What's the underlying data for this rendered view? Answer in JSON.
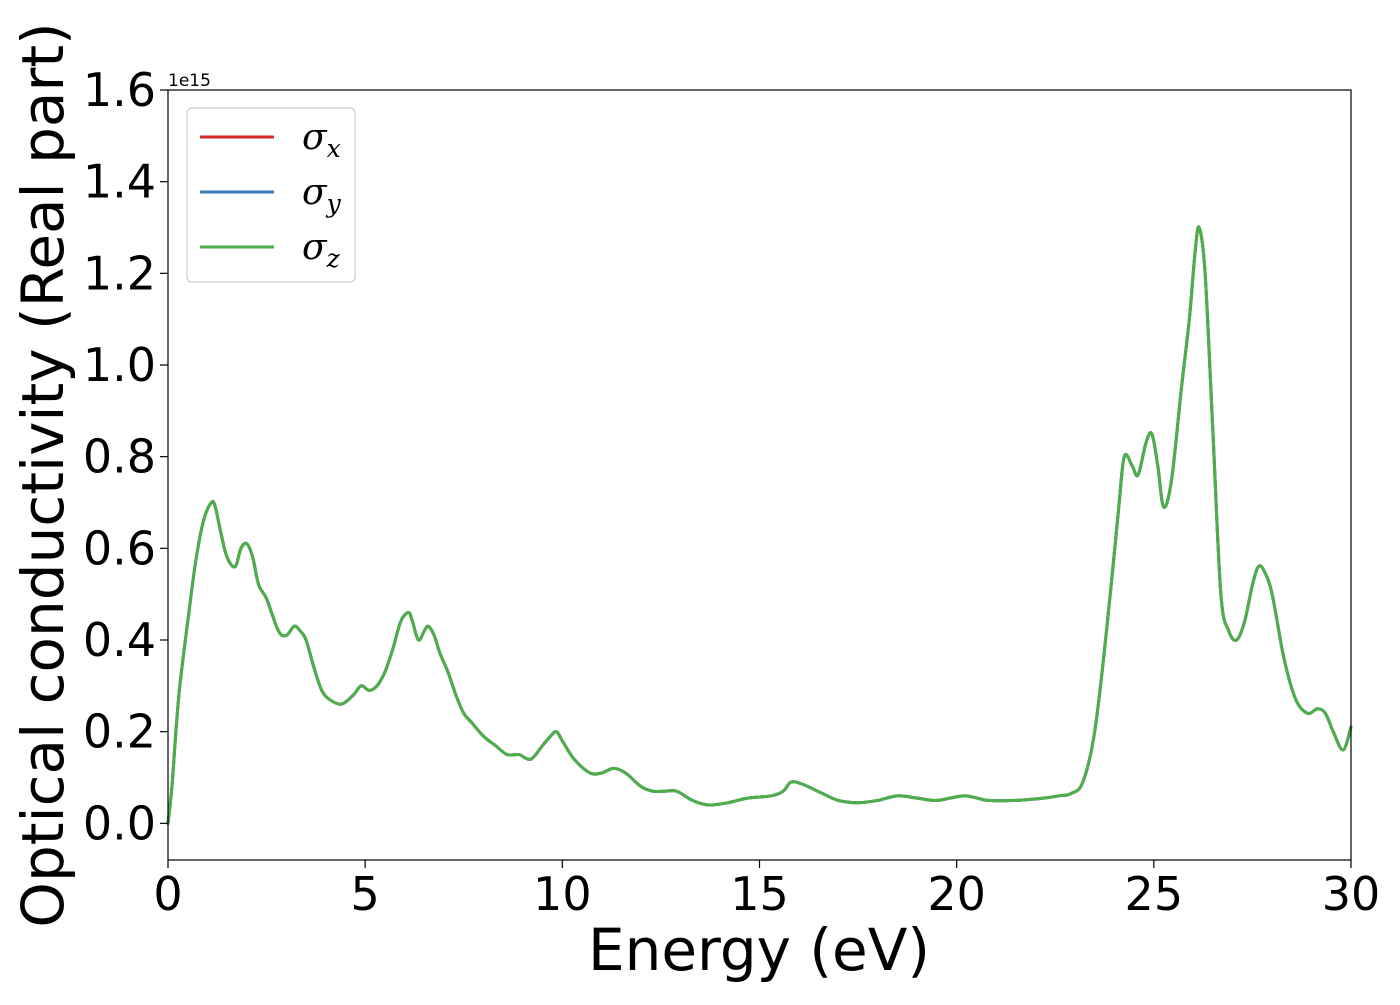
{
  "chart_data": {
    "type": "line",
    "title": "",
    "xlabel": "Energy (eV)",
    "ylabel": "Optical conductivity (Real part)",
    "y_offset_text": "1e15",
    "xlim": [
      0,
      30
    ],
    "ylim": [
      -0.08,
      1.6
    ],
    "x_ticks": [
      0,
      5,
      10,
      15,
      20,
      25,
      30
    ],
    "x_tick_labels": [
      "0",
      "5",
      "10",
      "15",
      "20",
      "25",
      "30"
    ],
    "y_ticks": [
      0.0,
      0.2,
      0.4,
      0.6,
      0.8,
      1.0,
      1.2,
      1.4,
      1.6
    ],
    "y_tick_labels": [
      "0.0",
      "0.2",
      "0.4",
      "0.6",
      "0.8",
      "1.0",
      "1.2",
      "1.4",
      "1.6"
    ],
    "grid": false,
    "legend_position": "top-left",
    "x": [
      0,
      0.1,
      0.2,
      0.3,
      0.5,
      0.7,
      0.9,
      1.1,
      1.2,
      1.35,
      1.5,
      1.7,
      1.85,
      2.0,
      2.15,
      2.3,
      2.5,
      2.8,
      3.0,
      3.2,
      3.35,
      3.5,
      3.7,
      3.9,
      4.1,
      4.4,
      4.7,
      4.9,
      5.1,
      5.3,
      5.5,
      5.7,
      5.9,
      6.1,
      6.2,
      6.35,
      6.5,
      6.6,
      6.75,
      6.9,
      7.1,
      7.3,
      7.5,
      7.7,
      8.0,
      8.3,
      8.6,
      8.9,
      9.2,
      9.5,
      9.7,
      9.85,
      10.0,
      10.3,
      10.7,
      11.0,
      11.3,
      11.6,
      12.0,
      12.3,
      12.6,
      12.9,
      13.3,
      13.7,
      14.2,
      14.7,
      15.3,
      15.6,
      15.8,
      16.1,
      16.6,
      17.0,
      17.5,
      18.0,
      18.5,
      19.0,
      19.5,
      20.2,
      20.8,
      21.5,
      22.2,
      22.6,
      22.9,
      23.2,
      23.5,
      23.8,
      24.1,
      24.25,
      24.45,
      24.6,
      24.8,
      24.95,
      25.1,
      25.25,
      25.45,
      25.7,
      25.9,
      26.05,
      26.15,
      26.3,
      26.5,
      26.7,
      26.9,
      27.1,
      27.3,
      27.5,
      27.65,
      27.8,
      28.0,
      28.3,
      28.6,
      28.9,
      29.15,
      29.35,
      29.55,
      29.8,
      30.0
    ],
    "series": [
      {
        "name": "σx",
        "color": "#d62728",
        "values": [
          0.0,
          0.08,
          0.2,
          0.3,
          0.44,
          0.57,
          0.66,
          0.7,
          0.69,
          0.63,
          0.58,
          0.56,
          0.6,
          0.61,
          0.58,
          0.52,
          0.49,
          0.42,
          0.41,
          0.43,
          0.42,
          0.4,
          0.34,
          0.29,
          0.27,
          0.26,
          0.28,
          0.3,
          0.29,
          0.3,
          0.33,
          0.38,
          0.44,
          0.46,
          0.44,
          0.4,
          0.42,
          0.43,
          0.41,
          0.37,
          0.33,
          0.28,
          0.24,
          0.22,
          0.19,
          0.17,
          0.15,
          0.15,
          0.14,
          0.17,
          0.19,
          0.2,
          0.18,
          0.14,
          0.11,
          0.11,
          0.12,
          0.11,
          0.08,
          0.07,
          0.07,
          0.07,
          0.05,
          0.04,
          0.045,
          0.055,
          0.06,
          0.07,
          0.09,
          0.085,
          0.065,
          0.05,
          0.045,
          0.05,
          0.06,
          0.055,
          0.05,
          0.06,
          0.05,
          0.05,
          0.055,
          0.06,
          0.065,
          0.09,
          0.2,
          0.42,
          0.68,
          0.8,
          0.78,
          0.76,
          0.83,
          0.85,
          0.78,
          0.69,
          0.75,
          0.95,
          1.1,
          1.25,
          1.3,
          1.2,
          0.85,
          0.5,
          0.42,
          0.4,
          0.44,
          0.52,
          0.56,
          0.55,
          0.5,
          0.36,
          0.27,
          0.24,
          0.25,
          0.24,
          0.2,
          0.16,
          0.21
        ]
      },
      {
        "name": "σy",
        "color": "#377eb8",
        "values": [
          0.0,
          0.08,
          0.2,
          0.3,
          0.44,
          0.57,
          0.66,
          0.7,
          0.69,
          0.63,
          0.58,
          0.56,
          0.6,
          0.61,
          0.58,
          0.52,
          0.49,
          0.42,
          0.41,
          0.43,
          0.42,
          0.4,
          0.34,
          0.29,
          0.27,
          0.26,
          0.28,
          0.3,
          0.29,
          0.3,
          0.33,
          0.38,
          0.44,
          0.46,
          0.44,
          0.4,
          0.42,
          0.43,
          0.41,
          0.37,
          0.33,
          0.28,
          0.24,
          0.22,
          0.19,
          0.17,
          0.15,
          0.15,
          0.14,
          0.17,
          0.19,
          0.2,
          0.18,
          0.14,
          0.11,
          0.11,
          0.12,
          0.11,
          0.08,
          0.07,
          0.07,
          0.07,
          0.05,
          0.04,
          0.045,
          0.055,
          0.06,
          0.07,
          0.09,
          0.085,
          0.065,
          0.05,
          0.045,
          0.05,
          0.06,
          0.055,
          0.05,
          0.06,
          0.05,
          0.05,
          0.055,
          0.06,
          0.065,
          0.09,
          0.2,
          0.42,
          0.68,
          0.8,
          0.78,
          0.76,
          0.83,
          0.85,
          0.78,
          0.69,
          0.75,
          0.95,
          1.1,
          1.25,
          1.3,
          1.2,
          0.85,
          0.5,
          0.42,
          0.4,
          0.44,
          0.52,
          0.56,
          0.55,
          0.5,
          0.36,
          0.27,
          0.24,
          0.25,
          0.24,
          0.2,
          0.16,
          0.21
        ]
      },
      {
        "name": "σz",
        "color": "#4daf4a",
        "values": [
          0.0,
          0.08,
          0.2,
          0.3,
          0.44,
          0.57,
          0.66,
          0.7,
          0.69,
          0.63,
          0.58,
          0.56,
          0.6,
          0.61,
          0.58,
          0.52,
          0.49,
          0.42,
          0.41,
          0.43,
          0.42,
          0.4,
          0.34,
          0.29,
          0.27,
          0.26,
          0.28,
          0.3,
          0.29,
          0.3,
          0.33,
          0.38,
          0.44,
          0.46,
          0.44,
          0.4,
          0.42,
          0.43,
          0.41,
          0.37,
          0.33,
          0.28,
          0.24,
          0.22,
          0.19,
          0.17,
          0.15,
          0.15,
          0.14,
          0.17,
          0.19,
          0.2,
          0.18,
          0.14,
          0.11,
          0.11,
          0.12,
          0.11,
          0.08,
          0.07,
          0.07,
          0.07,
          0.05,
          0.04,
          0.045,
          0.055,
          0.06,
          0.07,
          0.09,
          0.085,
          0.065,
          0.05,
          0.045,
          0.05,
          0.06,
          0.055,
          0.05,
          0.06,
          0.05,
          0.05,
          0.055,
          0.06,
          0.065,
          0.09,
          0.2,
          0.42,
          0.68,
          0.8,
          0.78,
          0.76,
          0.83,
          0.85,
          0.78,
          0.69,
          0.75,
          0.95,
          1.1,
          1.25,
          1.3,
          1.2,
          0.85,
          0.5,
          0.42,
          0.4,
          0.44,
          0.52,
          0.56,
          0.55,
          0.5,
          0.36,
          0.27,
          0.24,
          0.25,
          0.24,
          0.2,
          0.16,
          0.21
        ]
      }
    ],
    "legend": [
      {
        "symbol": "σ",
        "subscript": "x",
        "color": "#d62728"
      },
      {
        "symbol": "σ",
        "subscript": "y",
        "color": "#377eb8"
      },
      {
        "symbol": "σ",
        "subscript": "z",
        "color": "#4daf4a"
      }
    ]
  }
}
